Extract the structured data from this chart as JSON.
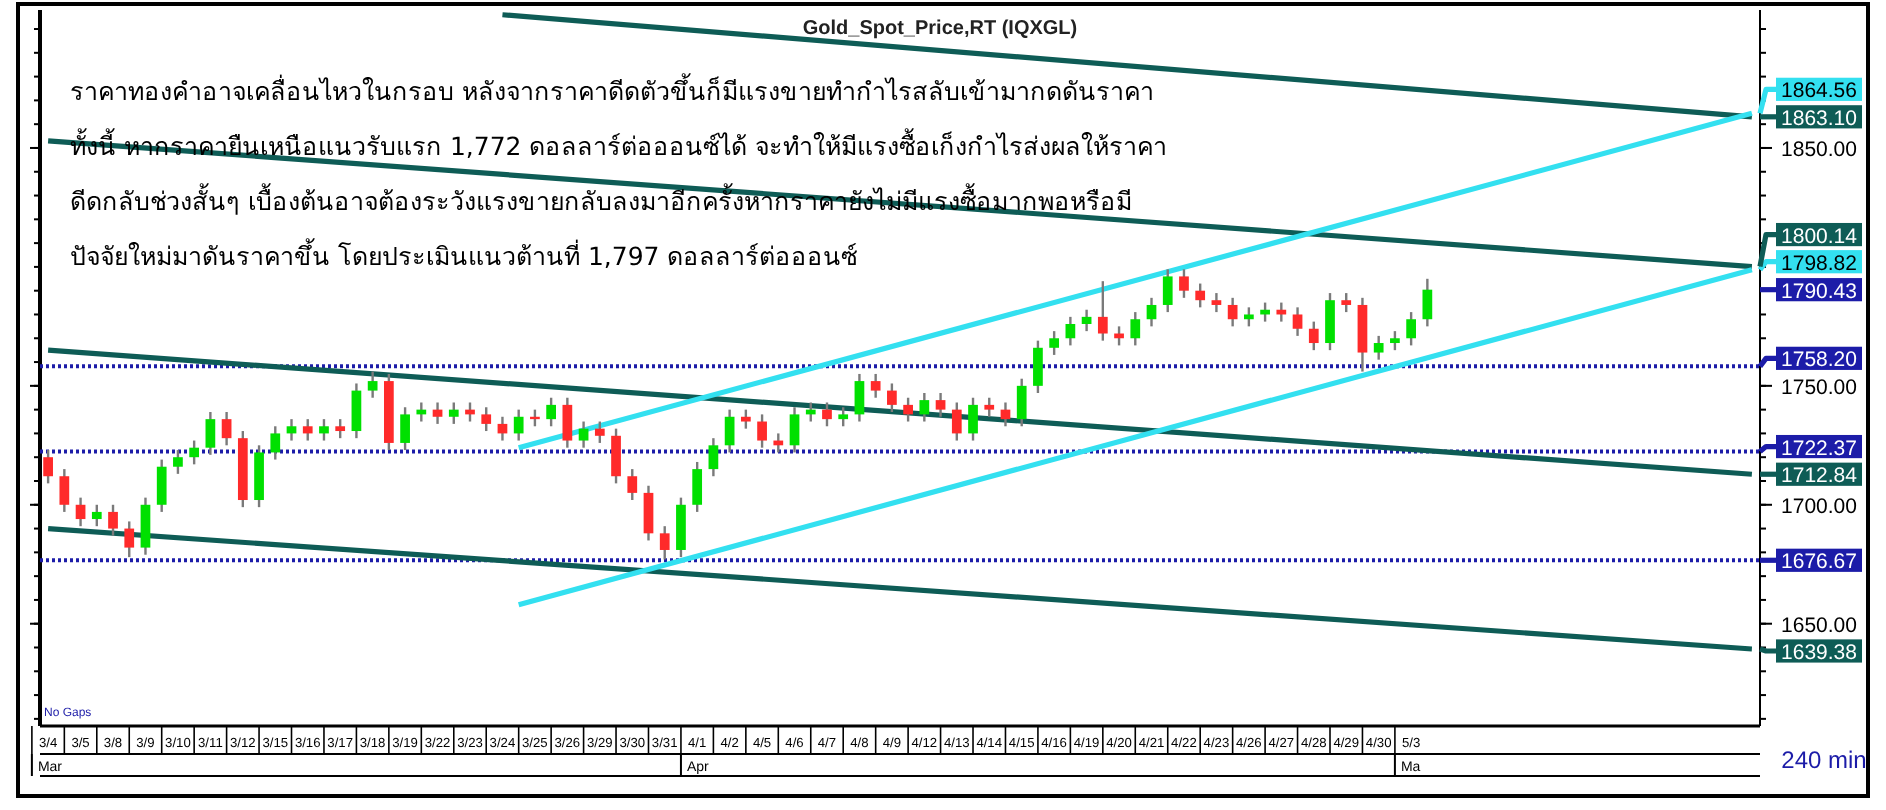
{
  "chart_data": {
    "type": "candlestick",
    "title": "Gold_Spot_Price,RT (IQXGL)",
    "categories": [
      "3/4",
      null,
      "3/5",
      null,
      "3/8",
      null,
      "3/9",
      null,
      "3/10",
      null,
      "3/11",
      null,
      "3/12",
      null,
      "3/15",
      null,
      "3/16",
      null,
      "3/17",
      null,
      "3/18",
      null,
      "3/19",
      null,
      "3/22",
      null,
      "3/23",
      null,
      "3/24",
      null,
      "3/25",
      null,
      "3/26",
      null,
      "3/29",
      null,
      "3/30",
      null,
      "3/31",
      null,
      "4/1",
      null,
      "4/2",
      null,
      "4/5",
      null,
      "4/6",
      null,
      "4/7",
      null,
      "4/8",
      null,
      "4/9",
      null,
      "4/12",
      null,
      "4/13",
      null,
      "4/14",
      null,
      "4/15",
      null,
      "4/16",
      null,
      "4/19",
      null,
      "4/20",
      null,
      "4/21",
      null,
      "4/22",
      null,
      "4/23",
      null,
      "4/26",
      null,
      "4/27",
      null,
      "4/28",
      null,
      "4/29",
      null,
      "4/30",
      null,
      "5/3",
      null,
      null,
      null,
      null,
      null,
      null,
      null,
      null,
      null,
      null,
      null,
      null,
      null,
      null,
      null,
      null,
      null,
      null,
      null,
      null,
      null
    ],
    "ohlc": [
      [
        1720,
        1723,
        1709,
        1712
      ],
      [
        1712,
        1715,
        1697,
        1700
      ],
      [
        1700,
        1703,
        1691,
        1694
      ],
      [
        1694,
        1700,
        1691,
        1697
      ],
      [
        1697,
        1700,
        1687,
        1690
      ],
      [
        1690,
        1693,
        1678,
        1682
      ],
      [
        1682,
        1703,
        1679,
        1700
      ],
      [
        1700,
        1719,
        1697,
        1716
      ],
      [
        1716,
        1723,
        1713,
        1720
      ],
      [
        1720,
        1727,
        1717,
        1724
      ],
      [
        1724,
        1739,
        1721,
        1736
      ],
      [
        1736,
        1739,
        1725,
        1728
      ],
      [
        1728,
        1731,
        1699,
        1702
      ],
      [
        1702,
        1725,
        1699,
        1722
      ],
      [
        1722,
        1733,
        1719,
        1730
      ],
      [
        1730,
        1736,
        1727,
        1733
      ],
      [
        1733,
        1736,
        1727,
        1730
      ],
      [
        1730,
        1736,
        1727,
        1733
      ],
      [
        1733,
        1736,
        1728,
        1731
      ],
      [
        1731,
        1751,
        1728,
        1748
      ],
      [
        1748,
        1756,
        1745,
        1752
      ],
      [
        1752,
        1755,
        1723,
        1726
      ],
      [
        1726,
        1741,
        1723,
        1738
      ],
      [
        1738,
        1743,
        1735,
        1740
      ],
      [
        1740,
        1743,
        1734,
        1737
      ],
      [
        1737,
        1743,
        1734,
        1740
      ],
      [
        1740,
        1743,
        1735,
        1738
      ],
      [
        1738,
        1741,
        1731,
        1734
      ],
      [
        1734,
        1737,
        1727,
        1730
      ],
      [
        1730,
        1740,
        1727,
        1737
      ],
      [
        1737,
        1740,
        1733,
        1736
      ],
      [
        1736,
        1745,
        1733,
        1742
      ],
      [
        1742,
        1745,
        1724,
        1727
      ],
      [
        1727,
        1735,
        1724,
        1732
      ],
      [
        1732,
        1735,
        1726,
        1729
      ],
      [
        1729,
        1732,
        1709,
        1712
      ],
      [
        1712,
        1715,
        1702,
        1705
      ],
      [
        1705,
        1708,
        1685,
        1688
      ],
      [
        1688,
        1691,
        1677,
        1681
      ],
      [
        1681,
        1703,
        1678,
        1700
      ],
      [
        1700,
        1718,
        1697,
        1715
      ],
      [
        1715,
        1728,
        1712,
        1725
      ],
      [
        1725,
        1740,
        1722,
        1737
      ],
      [
        1737,
        1740,
        1732,
        1735
      ],
      [
        1735,
        1738,
        1724,
        1727
      ],
      [
        1727,
        1730,
        1722,
        1725
      ],
      [
        1725,
        1741,
        1722,
        1738
      ],
      [
        1738,
        1743,
        1735,
        1740
      ],
      [
        1740,
        1743,
        1733,
        1736
      ],
      [
        1736,
        1741,
        1733,
        1738
      ],
      [
        1738,
        1755,
        1735,
        1752
      ],
      [
        1752,
        1755,
        1745,
        1748
      ],
      [
        1748,
        1751,
        1739,
        1742
      ],
      [
        1742,
        1745,
        1735,
        1738
      ],
      [
        1738,
        1747,
        1735,
        1744
      ],
      [
        1744,
        1747,
        1737,
        1740
      ],
      [
        1740,
        1743,
        1727,
        1730
      ],
      [
        1730,
        1745,
        1727,
        1742
      ],
      [
        1742,
        1745,
        1737,
        1740
      ],
      [
        1740,
        1743,
        1733,
        1736
      ],
      [
        1736,
        1753,
        1733,
        1750
      ],
      [
        1750,
        1769,
        1747,
        1766
      ],
      [
        1766,
        1773,
        1763,
        1770
      ],
      [
        1770,
        1779,
        1767,
        1776
      ],
      [
        1776,
        1782,
        1773,
        1779
      ],
      [
        1779,
        1794,
        1769,
        1772
      ],
      [
        1772,
        1775,
        1767,
        1770
      ],
      [
        1770,
        1781,
        1767,
        1778
      ],
      [
        1778,
        1787,
        1775,
        1784
      ],
      [
        1784,
        1799,
        1781,
        1796
      ],
      [
        1796,
        1799,
        1787,
        1790
      ],
      [
        1790,
        1793,
        1783,
        1786
      ],
      [
        1786,
        1789,
        1781,
        1784
      ],
      [
        1784,
        1787,
        1775,
        1778
      ],
      [
        1778,
        1783,
        1775,
        1780
      ],
      [
        1780,
        1785,
        1777,
        1782
      ],
      [
        1782,
        1785,
        1777,
        1780
      ],
      [
        1780,
        1783,
        1771,
        1774
      ],
      [
        1774,
        1777,
        1765,
        1768
      ],
      [
        1768,
        1789,
        1765,
        1786
      ],
      [
        1786,
        1789,
        1781,
        1784
      ],
      [
        1784,
        1787,
        1756,
        1764
      ],
      [
        1764,
        1771,
        1761,
        1768
      ],
      [
        1768,
        1773,
        1765,
        1770
      ],
      [
        1770,
        1781,
        1767,
        1778
      ],
      [
        1778,
        1795,
        1775,
        1790.43
      ],
      null,
      null,
      null,
      null,
      null,
      null,
      null,
      null,
      null,
      null,
      null,
      null,
      null,
      null,
      null,
      null,
      null,
      null,
      null,
      null
    ],
    "series": [
      {
        "type": "line",
        "name": "1863.10",
        "color": "#0e5c56",
        "values": [
          null,
          null,
          null,
          null,
          null,
          null,
          null,
          null,
          null,
          null,
          null,
          null,
          null,
          null,
          null,
          null,
          null,
          null,
          null,
          null,
          null,
          null,
          null,
          null,
          null,
          null,
          null,
          null,
          1906,
          null,
          null,
          null,
          null,
          null,
          null,
          null,
          null,
          null,
          null,
          null,
          null,
          null,
          null,
          null,
          null,
          null,
          null,
          null,
          null,
          null,
          null,
          null,
          null,
          null,
          null,
          null,
          null,
          null,
          null,
          null,
          null,
          null,
          null,
          null,
          null,
          null,
          null,
          null,
          null,
          null,
          null,
          null,
          null,
          null,
          null,
          null,
          null,
          null,
          null,
          null,
          null,
          null,
          null,
          null,
          null,
          null,
          null,
          null,
          null,
          null,
          null,
          null,
          null,
          null,
          null,
          null,
          null,
          null,
          null,
          null,
          null,
          null,
          null,
          null,
          null,
          1863.1
        ]
      },
      {
        "type": "line",
        "name": "1800.14",
        "color": "#0e5c56",
        "values": [
          1853,
          null,
          null,
          null,
          null,
          null,
          null,
          null,
          null,
          null,
          null,
          null,
          null,
          null,
          null,
          null,
          null,
          null,
          null,
          null,
          null,
          null,
          null,
          null,
          null,
          null,
          null,
          null,
          null,
          null,
          null,
          null,
          null,
          null,
          null,
          null,
          null,
          null,
          null,
          null,
          null,
          null,
          null,
          null,
          null,
          null,
          null,
          null,
          null,
          null,
          null,
          null,
          null,
          null,
          null,
          null,
          null,
          null,
          null,
          null,
          null,
          null,
          null,
          null,
          null,
          null,
          null,
          null,
          null,
          null,
          null,
          null,
          null,
          null,
          null,
          null,
          null,
          null,
          null,
          null,
          null,
          null,
          null,
          null,
          null,
          null,
          null,
          null,
          null,
          null,
          null,
          null,
          null,
          null,
          null,
          null,
          null,
          null,
          null,
          null,
          null,
          null,
          null,
          null,
          null,
          1800.14
        ]
      },
      {
        "type": "line",
        "name": "1712.84",
        "color": "#0e5c56",
        "values": [
          1765,
          null,
          null,
          null,
          null,
          null,
          null,
          null,
          null,
          null,
          null,
          null,
          null,
          null,
          null,
          null,
          null,
          null,
          null,
          null,
          null,
          null,
          null,
          null,
          null,
          null,
          null,
          null,
          null,
          null,
          null,
          null,
          null,
          null,
          null,
          null,
          null,
          null,
          null,
          null,
          null,
          null,
          null,
          null,
          null,
          null,
          null,
          null,
          null,
          null,
          null,
          null,
          null,
          null,
          null,
          null,
          null,
          null,
          null,
          null,
          null,
          null,
          null,
          null,
          null,
          null,
          null,
          null,
          null,
          null,
          null,
          null,
          null,
          null,
          null,
          null,
          null,
          null,
          null,
          null,
          null,
          null,
          null,
          null,
          null,
          null,
          null,
          null,
          null,
          null,
          null,
          null,
          null,
          null,
          null,
          null,
          null,
          null,
          null,
          null,
          null,
          null,
          null,
          null,
          null,
          1712.84
        ]
      },
      {
        "type": "line",
        "name": "1639.38",
        "color": "#0e5c56",
        "values": [
          1690,
          null,
          null,
          null,
          null,
          null,
          null,
          null,
          null,
          null,
          null,
          null,
          null,
          null,
          null,
          null,
          null,
          null,
          null,
          null,
          null,
          null,
          null,
          null,
          null,
          null,
          null,
          null,
          null,
          null,
          null,
          null,
          null,
          null,
          null,
          null,
          null,
          null,
          null,
          null,
          null,
          null,
          null,
          null,
          null,
          null,
          null,
          null,
          null,
          null,
          null,
          null,
          null,
          null,
          null,
          null,
          null,
          null,
          null,
          null,
          null,
          null,
          null,
          null,
          null,
          null,
          null,
          null,
          null,
          null,
          null,
          null,
          null,
          null,
          null,
          null,
          null,
          null,
          null,
          null,
          null,
          null,
          null,
          null,
          null,
          null,
          null,
          null,
          null,
          null,
          null,
          null,
          null,
          null,
          null,
          null,
          null,
          null,
          null,
          null,
          null,
          null,
          null,
          null,
          null,
          1639.38
        ]
      },
      {
        "type": "line",
        "name": "1864.56",
        "color": "#33e0f0",
        "values": [
          null,
          null,
          null,
          null,
          null,
          null,
          null,
          null,
          null,
          null,
          null,
          null,
          null,
          null,
          null,
          null,
          null,
          null,
          null,
          null,
          null,
          null,
          null,
          null,
          null,
          null,
          null,
          null,
          null,
          1724,
          null,
          null,
          null,
          null,
          null,
          null,
          null,
          null,
          null,
          null,
          null,
          null,
          null,
          null,
          null,
          null,
          null,
          null,
          null,
          null,
          null,
          null,
          null,
          null,
          null,
          null,
          null,
          null,
          null,
          null,
          null,
          null,
          null,
          null,
          null,
          null,
          null,
          null,
          null,
          null,
          null,
          null,
          null,
          null,
          null,
          null,
          null,
          null,
          null,
          null,
          null,
          null,
          null,
          null,
          null,
          null,
          null,
          null,
          null,
          null,
          null,
          null,
          null,
          null,
          null,
          null,
          null,
          null,
          null,
          null,
          null,
          null,
          null,
          null,
          null,
          1864.56
        ]
      },
      {
        "type": "line",
        "name": "1798.82",
        "color": "#33e0f0",
        "values": [
          null,
          null,
          null,
          null,
          null,
          null,
          null,
          null,
          null,
          null,
          null,
          null,
          null,
          null,
          null,
          null,
          null,
          null,
          null,
          null,
          null,
          null,
          null,
          null,
          null,
          null,
          null,
          null,
          null,
          1658,
          null,
          null,
          null,
          null,
          null,
          null,
          null,
          null,
          null,
          null,
          null,
          null,
          null,
          null,
          null,
          null,
          null,
          null,
          null,
          null,
          null,
          null,
          null,
          null,
          null,
          null,
          null,
          null,
          null,
          null,
          null,
          null,
          null,
          null,
          null,
          null,
          null,
          null,
          null,
          null,
          null,
          null,
          null,
          null,
          null,
          null,
          null,
          null,
          null,
          null,
          null,
          null,
          null,
          null,
          null,
          null,
          null,
          null,
          null,
          null,
          null,
          null,
          null,
          null,
          null,
          null,
          null,
          null,
          null,
          null,
          null,
          null,
          null,
          null,
          null,
          1798.82
        ]
      }
    ],
    "ref_lines": [
      {
        "axis": "y",
        "value": 1758.2,
        "label": "1758.20",
        "color": "#1c1ca8",
        "line_style": "dotted"
      },
      {
        "axis": "y",
        "value": 1722.37,
        "label": "1722.37",
        "color": "#1c1ca8",
        "line_style": "dotted"
      },
      {
        "axis": "y",
        "value": 1676.67,
        "label": "1676.67",
        "color": "#1c1ca8",
        "line_style": "dotted"
      }
    ],
    "legend": "right",
    "ylim": [
      1607,
      1908
    ],
    "yticks": [
      {
        "value": 1650,
        "label": "1650.00"
      },
      {
        "value": 1700,
        "label": "1700.00"
      },
      {
        "value": 1750,
        "label": "1750.00"
      },
      {
        "value": 1850,
        "label": "1850.00"
      }
    ],
    "annotations": [
      "ราคาทองคำอาจเคลื่อนไหวในกรอบ  หลังจากราคาดีดตัวขึ้นก็มีแรงขายทำกำไรสลับเข้ามากดดันราคา",
      "ทั้งนี้ หากราคายืนเหนือแนวรับแรก 1,772 ดอลลาร์ต่อออนซ์ได้ จะทำให้มีแรงซื้อเก็งกำไรส่งผลให้ราคา",
      "ดีดกลับช่วงสั้นๆ เบื้องต้นอาจต้องระวังแรงขายกลับลงมาอีกครั้งหากราคายังไม่มีแรงซื้อมากพอหรือมี",
      "ปัจจัยใหม่มาดันราคาขึ้น โดยประเมินแนวต้านที่ 1,797 ดอลลาร์ต่อออนซ์",
      "No Gaps",
      "240 min",
      "Mar",
      "Apr",
      "Ma",
      "1790.43"
    ]
  }
}
